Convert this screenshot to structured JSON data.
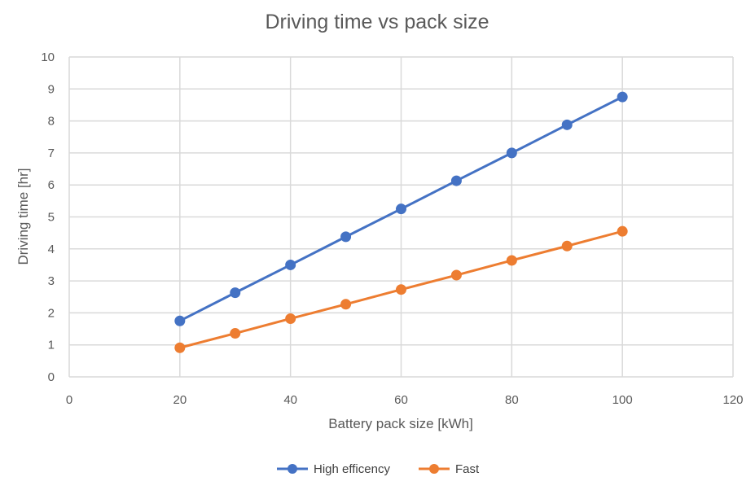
{
  "chart_data": {
    "type": "scatter",
    "title": "Driving time vs pack size",
    "xlabel": "Battery pack size [kWh]",
    "ylabel": "Driving time [hr]",
    "xlim": [
      0,
      120
    ],
    "ylim": [
      0,
      10
    ],
    "xticks": [
      "0",
      "20",
      "40",
      "60",
      "80",
      "100",
      "120"
    ],
    "yticks": [
      "0",
      "1",
      "2",
      "3",
      "4",
      "5",
      "6",
      "7",
      "8",
      "9",
      "10"
    ],
    "grid": true,
    "legend_position": "bottom",
    "x": [
      20,
      30,
      40,
      50,
      60,
      70,
      80,
      90,
      100
    ],
    "series": [
      {
        "name": "High efficency",
        "color": "#4472C4",
        "values": [
          1.75,
          2.63,
          3.5,
          4.38,
          5.25,
          6.13,
          7.0,
          7.88,
          8.75
        ]
      },
      {
        "name": "Fast",
        "color": "#ED7D31",
        "values": [
          0.91,
          1.36,
          1.82,
          2.27,
          2.73,
          3.18,
          3.64,
          4.09,
          4.55
        ]
      }
    ]
  }
}
